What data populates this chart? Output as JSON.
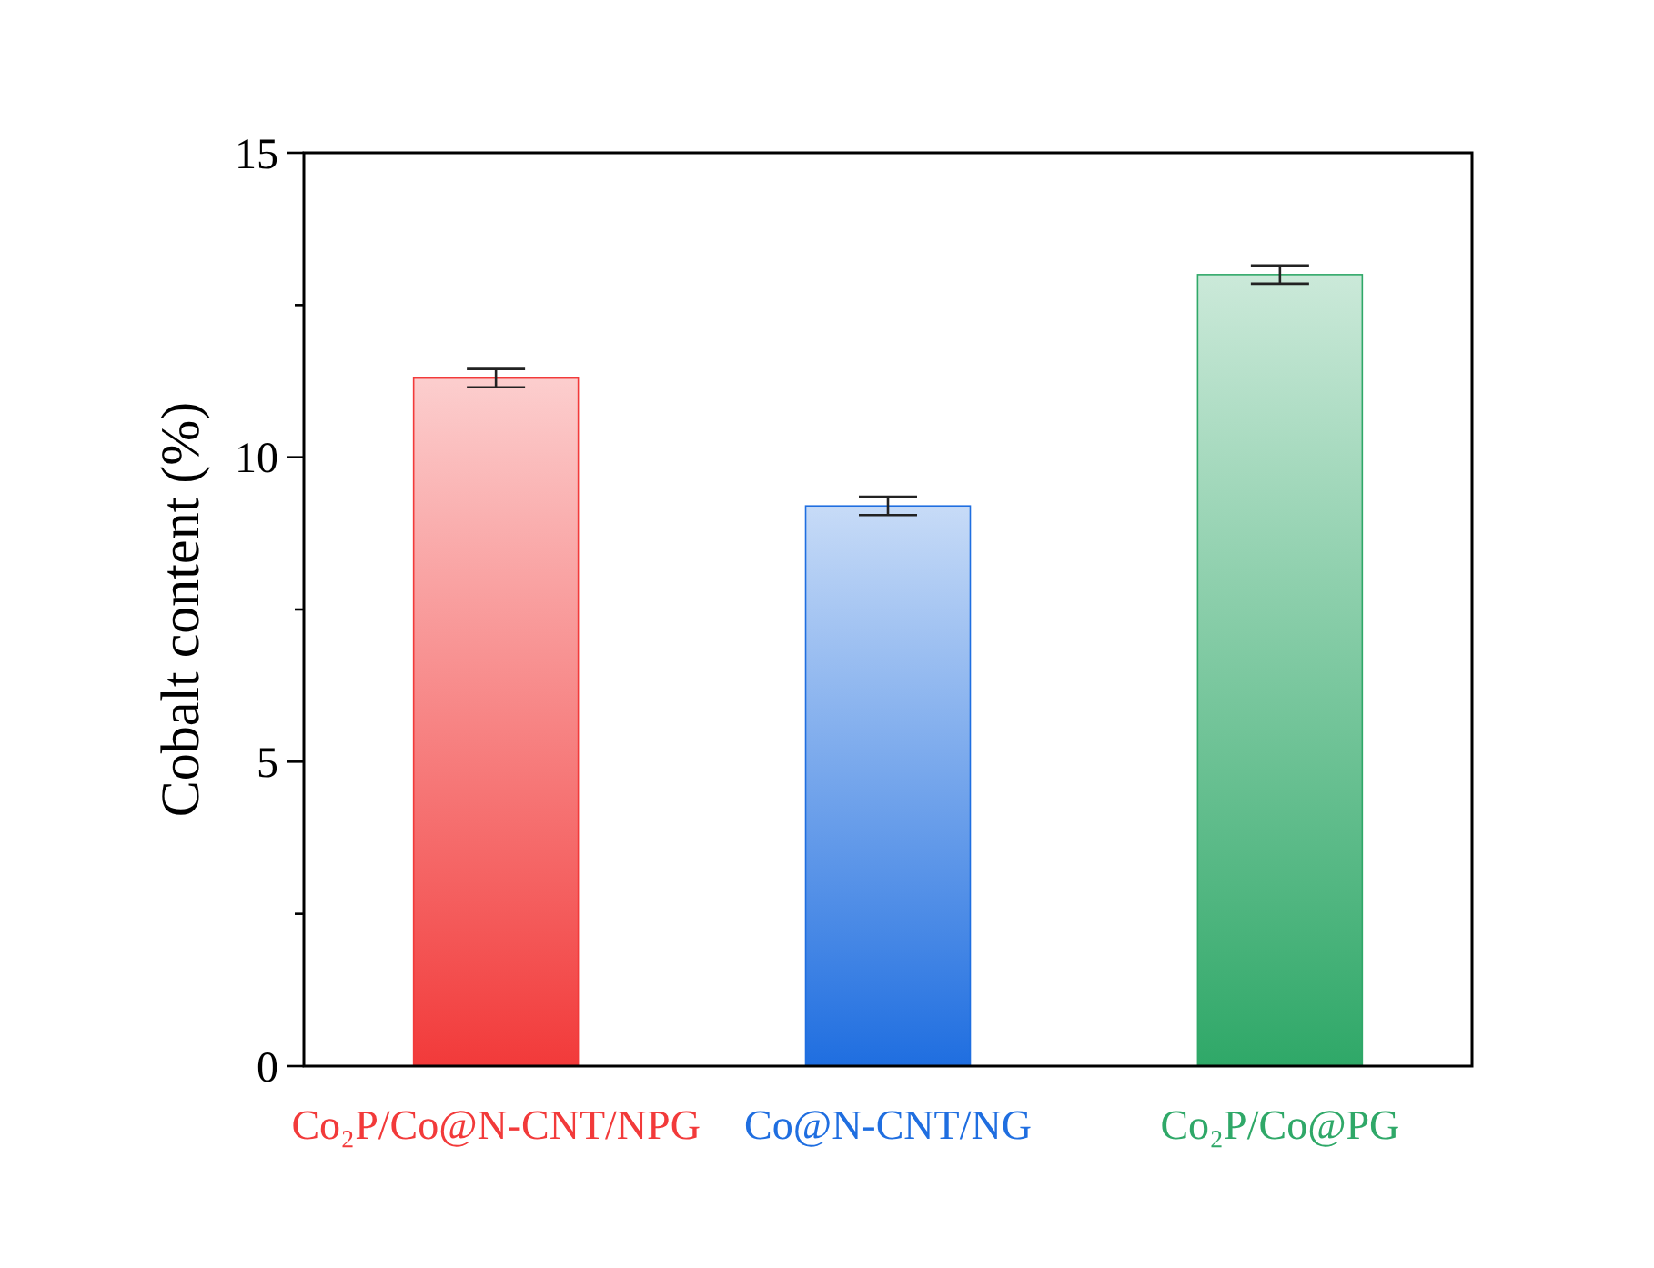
{
  "chart_data": {
    "type": "bar",
    "ylabel": "Cobalt content (%)",
    "categories": [
      "Co₂P/Co@N-CNT/NPG",
      "Co@N-CNT/NG",
      "Co₂P/Co@PG"
    ],
    "values": [
      11.3,
      9.2,
      13.0
    ],
    "errors": [
      0.15,
      0.15,
      0.15
    ],
    "colors": [
      "#f23a3a",
      "#1f6ee0",
      "#2fa868"
    ],
    "ylim": [
      0,
      15
    ],
    "yticks": [
      0,
      {
        "value": 2.5,
        "label": null
      },
      5,
      {
        "value": 7.5,
        "label": null
      },
      10,
      {
        "value": 12.5,
        "label": null
      },
      15
    ],
    "grid": false
  }
}
